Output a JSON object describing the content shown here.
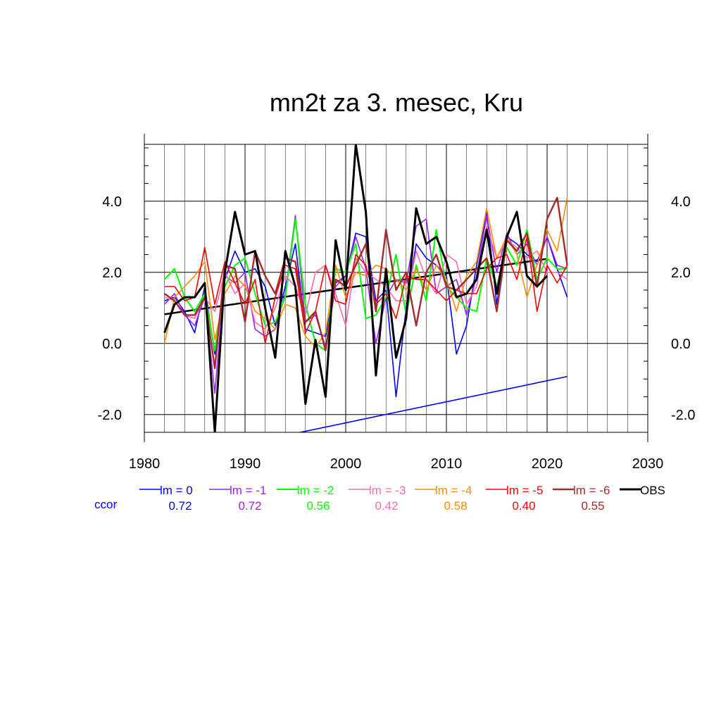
{
  "chart_data": {
    "type": "line",
    "title": "mn2t za 3. mesec, Kru",
    "xlim": [
      1980,
      2030
    ],
    "ylim": [
      -2.5,
      5.6
    ],
    "x_ticks": [
      "1980",
      "1990",
      "2000",
      "2010",
      "2020",
      "2030"
    ],
    "x_tick_values": [
      1980,
      1990,
      2000,
      2010,
      2020,
      2030
    ],
    "y_ticks": [
      "-2.0",
      "0.0",
      "2.0",
      "4.0"
    ],
    "y_tick_values": [
      -2,
      0,
      2,
      4
    ],
    "grid": true,
    "x": [
      1982,
      1983,
      1984,
      1985,
      1986,
      1987,
      1988,
      1989,
      1990,
      1991,
      1992,
      1993,
      1994,
      1995,
      1996,
      1997,
      1998,
      1999,
      2000,
      2001,
      2002,
      2003,
      2004,
      2005,
      2006,
      2007,
      2008,
      2009,
      2010,
      2011,
      2012,
      2013,
      2014,
      2015,
      2016,
      2017,
      2018,
      2019,
      2020,
      2021,
      2022
    ],
    "series": [
      {
        "name": "lm = 0",
        "color": "#0000ff",
        "width": 1.6,
        "values": [
          1.2,
          1.3,
          0.9,
          0.3,
          1.6,
          -0.3,
          1.8,
          2.6,
          2.0,
          2.1,
          1.6,
          0.5,
          1.6,
          2.8,
          0.4,
          0.3,
          0.2,
          1.7,
          1.9,
          3.1,
          3.0,
          1.2,
          1.5,
          -1.5,
          1.0,
          2.8,
          2.4,
          2.2,
          1.9,
          -0.3,
          0.5,
          2.2,
          3.7,
          1.1,
          3.0,
          2.8,
          2.5,
          2.3,
          3.0,
          2.1,
          1.3
        ]
      },
      {
        "name": "lm = -1",
        "color": "#a020f0",
        "width": 1.6,
        "values": [
          1.1,
          1.4,
          0.8,
          0.5,
          1.3,
          -1.4,
          1.9,
          1.7,
          2.0,
          0.4,
          0.2,
          0.4,
          1.4,
          3.6,
          0.6,
          0.8,
          -0.1,
          1.6,
          1.9,
          3.0,
          2.1,
          0.0,
          1.3,
          1.8,
          1.7,
          3.3,
          3.5,
          1.4,
          1.6,
          1.8,
          0.8,
          1.9,
          3.6,
          2.0,
          3.1,
          2.5,
          2.8,
          2.2,
          3.0,
          2.2,
          2.1
        ]
      },
      {
        "name": "lm = -2",
        "color": "#00ff00",
        "width": 2,
        "values": [
          1.8,
          2.1,
          1.3,
          0.9,
          1.4,
          -0.2,
          1.6,
          2.2,
          2.4,
          1.4,
          0.5,
          0.6,
          1.3,
          3.5,
          1.1,
          0.0,
          -0.2,
          2.1,
          2.0,
          2.8,
          0.7,
          0.8,
          1.3,
          2.5,
          0.8,
          2.2,
          1.2,
          3.2,
          1.6,
          1.3,
          1.0,
          0.9,
          2.4,
          1.6,
          2.7,
          2.2,
          3.2,
          1.8,
          2.4,
          2.1,
          2.1
        ]
      },
      {
        "name": "lm = -3",
        "color": "#ff69b4",
        "width": 1.6,
        "values": [
          1.3,
          1.2,
          0.8,
          0.7,
          1.3,
          0.9,
          2.0,
          1.4,
          1.7,
          0.6,
          0.4,
          1.0,
          1.9,
          1.6,
          0.8,
          2.0,
          2.2,
          1.4,
          0.5,
          2.4,
          2.0,
          1.8,
          1.6,
          1.2,
          1.2,
          2.6,
          1.8,
          1.4,
          2.5,
          2.3,
          1.1,
          1.6,
          3.3,
          2.4,
          2.9,
          2.7,
          2.4,
          2.6,
          2.0,
          2.0,
          1.8
        ]
      },
      {
        "name": "lm = -4",
        "color": "#ff8c00",
        "width": 1.6,
        "values": [
          0.0,
          1.3,
          1.6,
          1.9,
          2.3,
          0.1,
          1.4,
          1.9,
          1.6,
          0.9,
          0.7,
          0.4,
          1.1,
          1.0,
          0.2,
          -0.1,
          0.3,
          2.2,
          1.3,
          2.0,
          1.9,
          2.2,
          2.1,
          1.8,
          1.5,
          2.1,
          1.5,
          2.2,
          1.8,
          0.9,
          1.9,
          2.3,
          3.8,
          2.4,
          3.0,
          2.5,
          1.3,
          2.2,
          3.2,
          2.6,
          4.1
        ]
      },
      {
        "name": "lm = -5",
        "color": "#ff0000",
        "width": 1.6,
        "values": [
          1.6,
          1.6,
          1.2,
          1.3,
          2.7,
          1.1,
          2.3,
          1.7,
          1.1,
          1.8,
          0.0,
          1.3,
          2.2,
          2.1,
          0.3,
          0.9,
          2.2,
          1.2,
          1.1,
          2.5,
          2.2,
          1.1,
          1.4,
          0.7,
          1.9,
          1.8,
          1.8,
          1.5,
          1.2,
          1.5,
          1.4,
          1.4,
          2.1,
          2.4,
          2.5,
          1.8,
          3.0,
          0.9,
          2.2,
          1.7,
          2.2
        ]
      },
      {
        "name": "lm = -6",
        "color": "#a52a2a",
        "width": 2.4,
        "values": [
          1.4,
          1.2,
          0.8,
          0.8,
          1.3,
          -0.7,
          2.2,
          2.1,
          0.6,
          2.6,
          1.9,
          1.4,
          2.4,
          2.3,
          0.6,
          0.9,
          -0.2,
          1.8,
          1.6,
          2.2,
          2.8,
          0.9,
          3.2,
          1.5,
          2.0,
          0.5,
          2.0,
          2.5,
          1.6,
          1.5,
          1.8,
          2.1,
          2.4,
          0.9,
          2.9,
          2.6,
          3.1,
          1.6,
          3.5,
          4.1,
          2.2
        ]
      },
      {
        "name": "OBS",
        "color": "#000000",
        "width": 3,
        "values": [
          0.3,
          1.1,
          1.3,
          1.3,
          1.7,
          -2.5,
          2.0,
          3.7,
          2.5,
          2.6,
          1.0,
          -0.4,
          2.6,
          1.6,
          -1.7,
          0.1,
          -1.5,
          2.9,
          1.5,
          5.6,
          3.7,
          -0.9,
          2.1,
          -0.4,
          0.7,
          3.8,
          2.8,
          3.0,
          2.3,
          1.3,
          1.4,
          1.8,
          3.2,
          1.4,
          3.0,
          3.7,
          1.9,
          1.6,
          1.9,
          null,
          null
        ]
      }
    ],
    "trend_lines": [
      {
        "series": "OBS",
        "color": "#000000",
        "width": 2.5,
        "x": [
          1982,
          2020
        ],
        "y": [
          0.82,
          2.38
        ]
      },
      {
        "series": "lm = 0",
        "color": "#0000ff",
        "width": 1.6,
        "x": [
          1982,
          2022
        ],
        "y": [
          -3.3,
          -0.93
        ]
      }
    ],
    "correlation_label": "ccor",
    "correlations": [
      "0.72",
      "0.72",
      "0.56",
      "0.42",
      "0.58",
      "0.40",
      "0.55"
    ]
  }
}
